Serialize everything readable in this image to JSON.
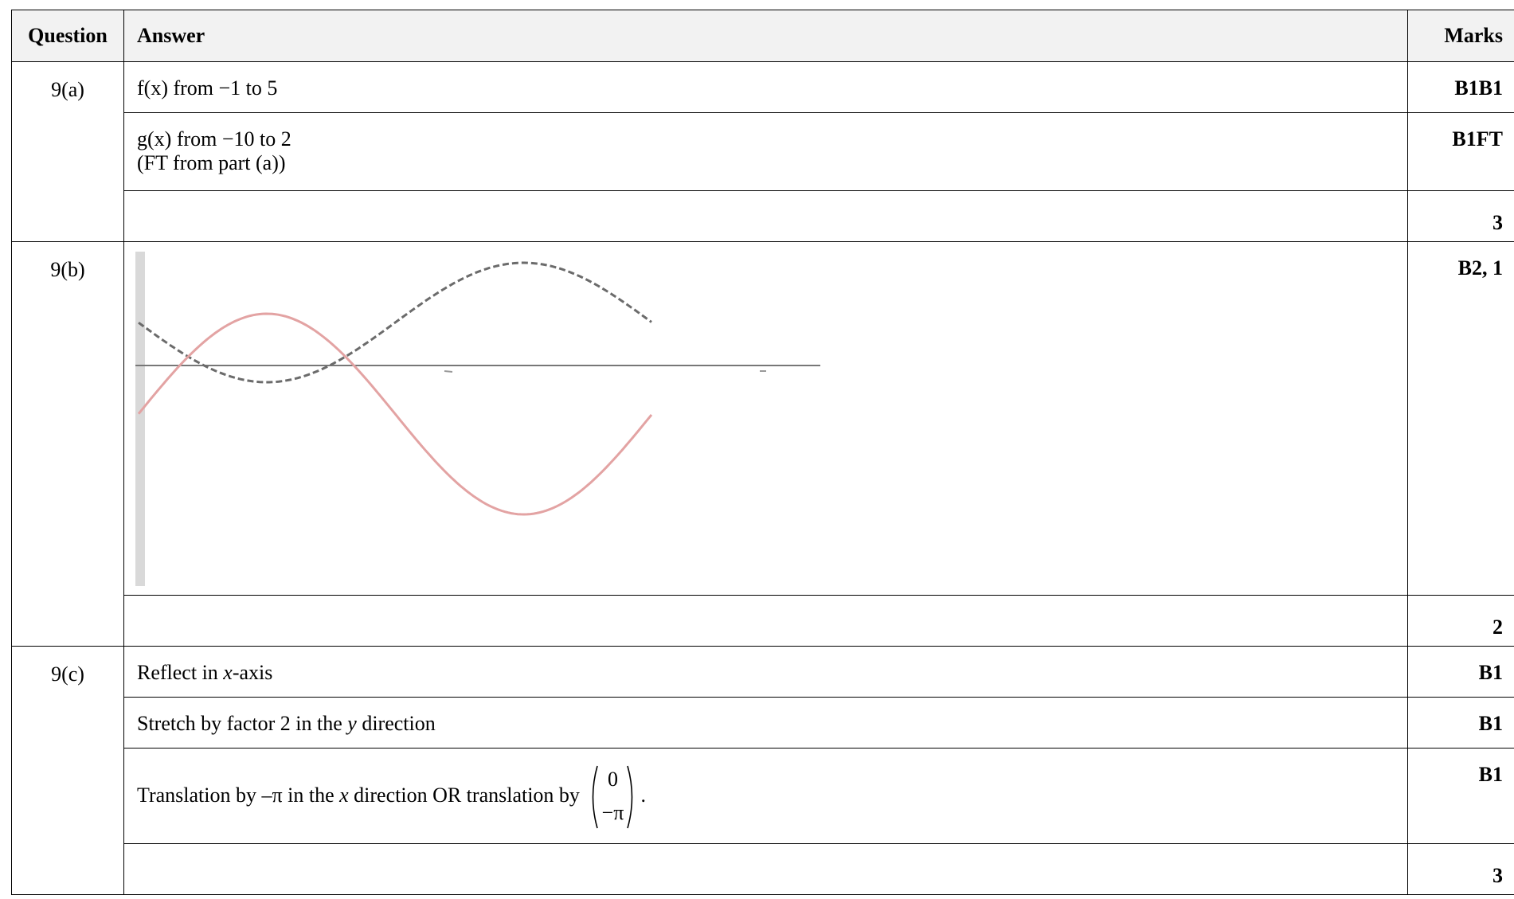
{
  "headers": {
    "question": "Question",
    "answer": "Answer",
    "marks": "Marks"
  },
  "q9a": {
    "label": "9(a)",
    "row1_answer": "f(x) from −1 to 5",
    "row1_marks": "B1B1",
    "row2_line1": "g(x) from −10 to 2",
    "row2_line2": "(FT from part (a))",
    "row2_marks": "B1FT",
    "total": "3"
  },
  "q9b": {
    "label": "9(b)",
    "marks": "B2, 1",
    "total": "2",
    "graph": {
      "series": [
        {
          "style": "dashed",
          "color": "#6b6b6b"
        },
        {
          "style": "solid",
          "color": "#e3a3a3"
        }
      ]
    }
  },
  "q9c": {
    "label": "9(c)",
    "row1_pre": "Reflect in ",
    "row1_var": "x",
    "row1_post": "-axis",
    "row1_marks": "B1",
    "row2_pre": "Stretch by factor 2 in the ",
    "row2_var": "y",
    "row2_post": " direction",
    "row2_marks": "B1",
    "row3_pre": "Translation by –π in the ",
    "row3_var": "x",
    "row3_post": " direction OR translation by",
    "row3_vec_top": "0",
    "row3_vec_bottom": "−π",
    "row3_end": ".",
    "row3_marks": "B1",
    "total": "3"
  }
}
